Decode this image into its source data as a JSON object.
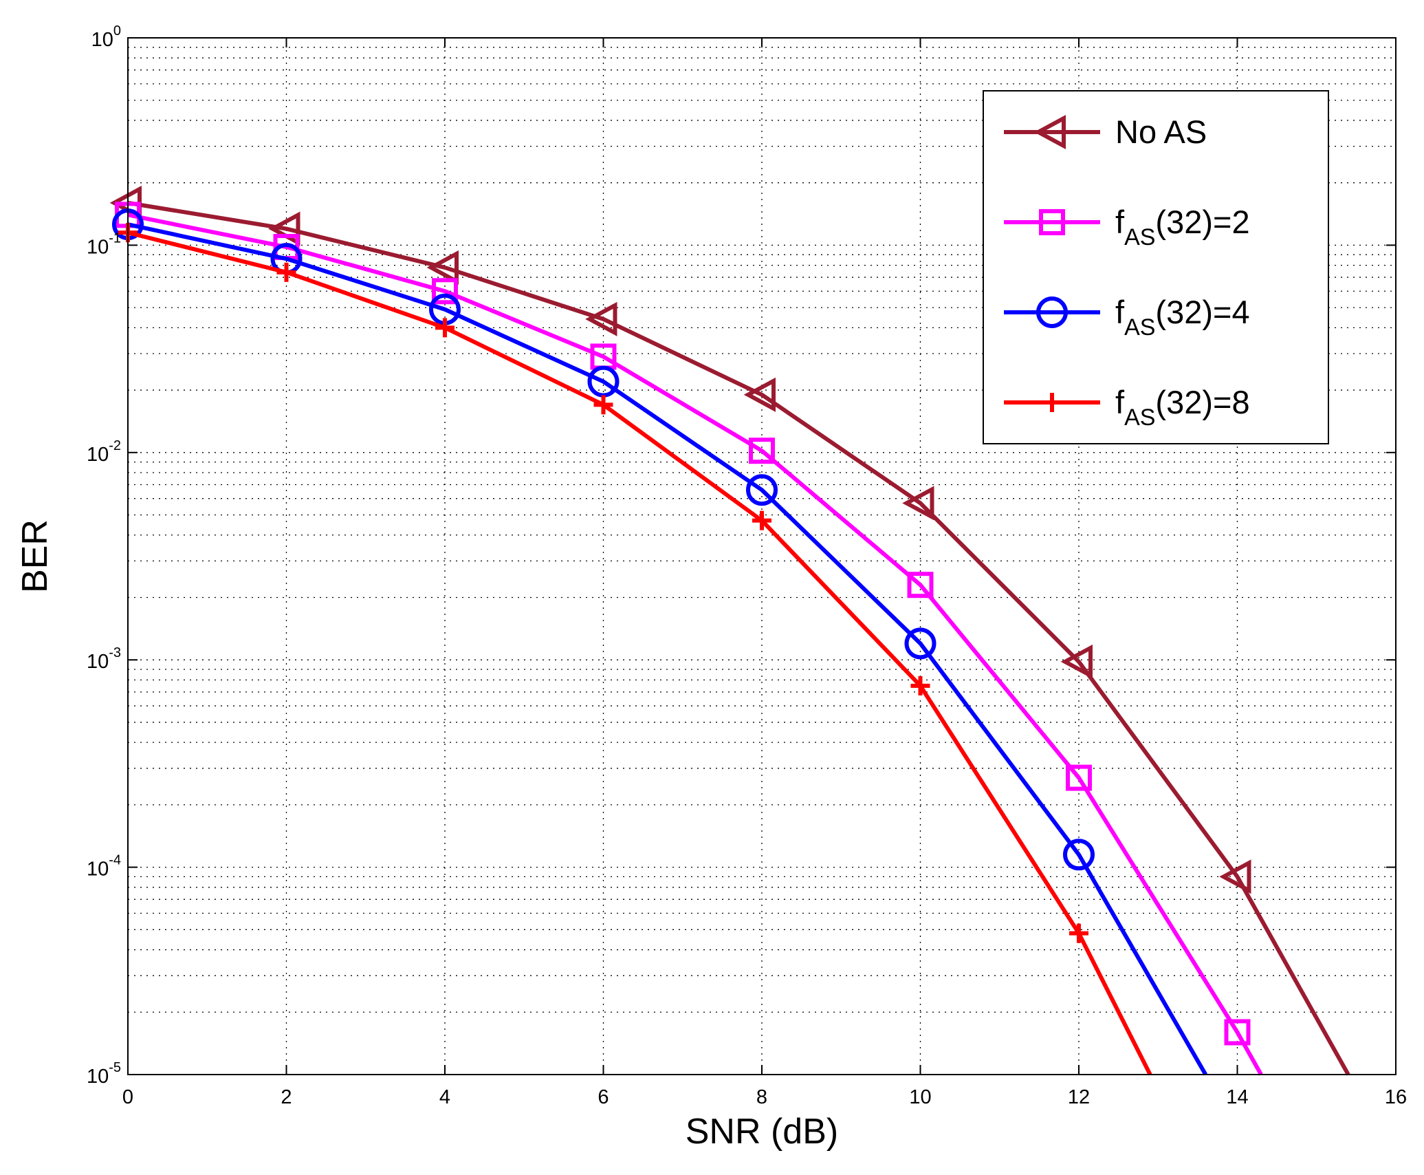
{
  "chart_data": {
    "type": "line",
    "xlabel": "SNR (dB)",
    "ylabel": "BER",
    "xlim": [
      0,
      16
    ],
    "ylim": [
      1e-05,
      1
    ],
    "yscale": "log",
    "grid": true,
    "x_ticks": [
      0,
      2,
      4,
      6,
      8,
      10,
      12,
      14,
      16
    ],
    "y_ticks": [
      {
        "base": "10",
        "exp": "0",
        "value": 1
      },
      {
        "base": "10",
        "exp": "-1",
        "value": 0.1
      },
      {
        "base": "10",
        "exp": "-2",
        "value": 0.01
      },
      {
        "base": "10",
        "exp": "-3",
        "value": 0.001
      },
      {
        "base": "10",
        "exp": "-4",
        "value": 0.0001
      },
      {
        "base": "10",
        "exp": "-5",
        "value": 1e-05
      }
    ],
    "legend_position": "top-right",
    "series": [
      {
        "name": "No AS",
        "label_main": "No AS",
        "label_sub": "",
        "label_tail": "",
        "marker": "triangle-left",
        "color": "#9B1B30",
        "x": [
          0,
          2,
          4,
          6,
          8,
          10,
          12,
          14,
          15.4
        ],
        "y": [
          0.16,
          0.12,
          0.078,
          0.044,
          0.019,
          0.0057,
          0.00098,
          9e-05,
          1e-05
        ]
      },
      {
        "name": "f_AS(32)=2",
        "label_main": "f",
        "label_sub": "AS",
        "label_tail": "(32)=2",
        "marker": "square",
        "color": "#FF00FF",
        "x": [
          0,
          2,
          4,
          6,
          8,
          10,
          12,
          14,
          14.3
        ],
        "y": [
          0.14,
          0.098,
          0.06,
          0.029,
          0.0102,
          0.0023,
          0.00027,
          1.6e-05,
          1e-05
        ]
      },
      {
        "name": "f_AS(32)=4",
        "label_main": "f",
        "label_sub": "AS",
        "label_tail": "(32)=4",
        "marker": "circle",
        "color": "#0000FF",
        "x": [
          0,
          2,
          4,
          6,
          8,
          10,
          12,
          13.6
        ],
        "y": [
          0.126,
          0.086,
          0.049,
          0.022,
          0.0066,
          0.0012,
          0.000115,
          1e-05
        ]
      },
      {
        "name": "f_AS(32)=8",
        "label_main": "f",
        "label_sub": "AS",
        "label_tail": "(32)=8",
        "marker": "plus",
        "color": "#FF0000",
        "x": [
          0,
          2,
          4,
          6,
          8,
          10,
          12,
          12.9
        ],
        "y": [
          0.115,
          0.074,
          0.04,
          0.017,
          0.0047,
          0.00075,
          4.8e-05,
          1e-05
        ]
      }
    ]
  }
}
